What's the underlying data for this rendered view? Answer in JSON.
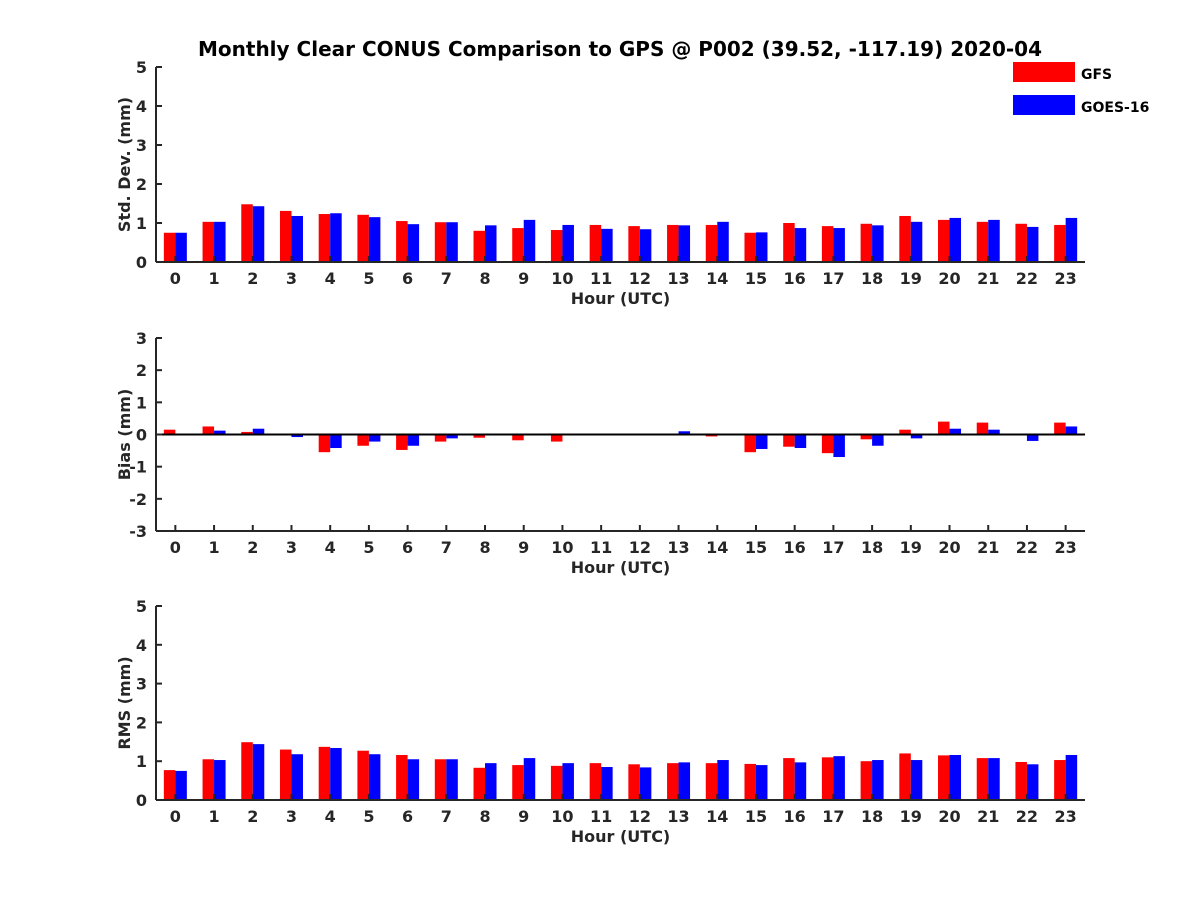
{
  "chart_data": {
    "type": "bar",
    "title": "Monthly Clear CONUS Comparison to GPS @ P002 (39.52, -117.19) 2020-04",
    "legend": {
      "placement": "top-right",
      "entries": [
        {
          "name": "GFS",
          "color": "#ff0000"
        },
        {
          "name": "GOES-16",
          "color": "#0000ff"
        }
      ]
    },
    "categories": [
      "0",
      "1",
      "2",
      "3",
      "4",
      "5",
      "6",
      "7",
      "8",
      "9",
      "10",
      "11",
      "12",
      "13",
      "14",
      "15",
      "16",
      "17",
      "18",
      "19",
      "20",
      "21",
      "22",
      "23"
    ],
    "panels": [
      {
        "ylabel": "Std. Dev. (mm)",
        "xlabel": "Hour (UTC)",
        "ylim": [
          0,
          5
        ],
        "yticks": [
          0,
          1,
          2,
          3,
          4,
          5
        ],
        "grid": false,
        "series": [
          {
            "name": "GFS",
            "values": [
              0.75,
              1.03,
              1.48,
              1.31,
              1.23,
              1.21,
              1.05,
              1.02,
              0.8,
              0.87,
              0.82,
              0.95,
              0.92,
              0.95,
              0.95,
              0.75,
              1.0,
              0.92,
              0.98,
              1.18,
              1.08,
              1.03,
              0.98,
              0.95
            ]
          },
          {
            "name": "GOES-16",
            "values": [
              0.75,
              1.03,
              1.43,
              1.18,
              1.25,
              1.15,
              0.97,
              1.02,
              0.94,
              1.08,
              0.95,
              0.85,
              0.84,
              0.94,
              1.03,
              0.76,
              0.87,
              0.87,
              0.94,
              1.03,
              1.13,
              1.08,
              0.9,
              1.13
            ]
          }
        ]
      },
      {
        "ylabel": "Bias (mm)",
        "xlabel": "Hour (UTC)",
        "ylim": [
          -3,
          3
        ],
        "yticks": [
          -3,
          -2,
          -1,
          0,
          1,
          2,
          3
        ],
        "grid": false,
        "series": [
          {
            "name": "GFS",
            "values": [
              0.15,
              0.25,
              0.08,
              0.0,
              -0.55,
              -0.35,
              -0.48,
              -0.22,
              -0.1,
              -0.18,
              -0.22,
              0.0,
              0.0,
              0.02,
              -0.06,
              -0.55,
              -0.38,
              -0.58,
              -0.15,
              0.15,
              0.4,
              0.37,
              0.0,
              0.37
            ]
          },
          {
            "name": "GOES-16",
            "values": [
              0.02,
              0.12,
              0.18,
              -0.08,
              -0.42,
              -0.22,
              -0.35,
              -0.12,
              0.02,
              0.03,
              0.0,
              0.0,
              0.03,
              0.1,
              -0.03,
              -0.45,
              -0.42,
              -0.7,
              -0.35,
              -0.12,
              0.18,
              0.15,
              -0.2,
              0.25
            ]
          }
        ]
      },
      {
        "ylabel": "RMS (mm)",
        "xlabel": "Hour (UTC)",
        "ylim": [
          0,
          5
        ],
        "yticks": [
          0,
          1,
          2,
          3,
          4,
          5
        ],
        "grid": false,
        "series": [
          {
            "name": "GFS",
            "values": [
              0.77,
              1.05,
              1.49,
              1.3,
              1.37,
              1.27,
              1.16,
              1.05,
              0.83,
              0.9,
              0.88,
              0.95,
              0.92,
              0.95,
              0.95,
              0.93,
              1.08,
              1.1,
              1.0,
              1.2,
              1.15,
              1.08,
              0.98,
              1.03
            ]
          },
          {
            "name": "GOES-16",
            "values": [
              0.75,
              1.03,
              1.44,
              1.18,
              1.34,
              1.18,
              1.05,
              1.05,
              0.95,
              1.08,
              0.95,
              0.85,
              0.84,
              0.97,
              1.03,
              0.9,
              0.97,
              1.13,
              1.03,
              1.03,
              1.16,
              1.08,
              0.92,
              1.16
            ]
          }
        ]
      }
    ]
  }
}
